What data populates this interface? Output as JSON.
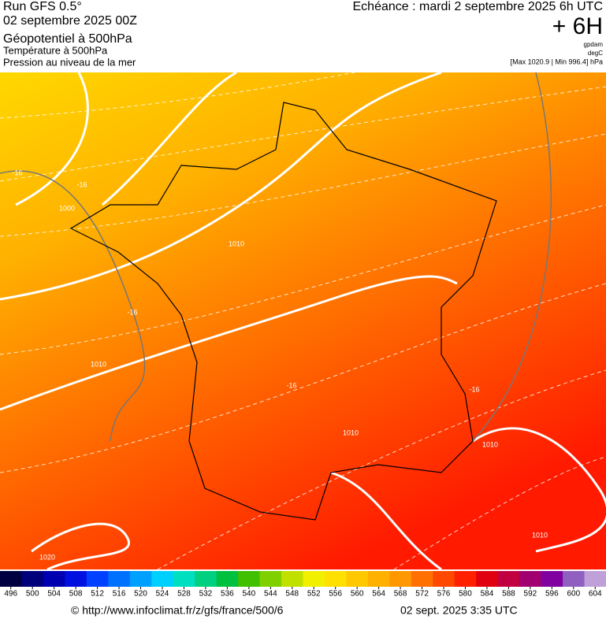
{
  "header": {
    "left": [
      "Run GFS 0.5°",
      "02 septembre 2025 00Z",
      "Géopotentiel à 500hPa",
      "Température à 500hPa",
      "Pression au niveau de la mer"
    ],
    "echeance": "Echéance : mardi 2 septembre 2025 6h UTC",
    "lead": "+ 6H",
    "units": [
      "gpdam",
      "degC"
    ],
    "range": "[Max 1020.9 | Min 996.4] hPa"
  },
  "map": {
    "labels": [
      "-16",
      "1000",
      "-16",
      "1010",
      "-16",
      "1010",
      "-16",
      "1010",
      "1010",
      "-16",
      "1020",
      "1010"
    ]
  },
  "legend": {
    "ticks": [
      496,
      500,
      504,
      508,
      512,
      516,
      520,
      524,
      528,
      532,
      536,
      540,
      544,
      548,
      552,
      556,
      560,
      564,
      568,
      572,
      576,
      580,
      584,
      588,
      592,
      596,
      600,
      604
    ],
    "colors": [
      "#000040",
      "#00007a",
      "#0000b0",
      "#0010e0",
      "#0040ff",
      "#0070ff",
      "#00a0ff",
      "#00d0ff",
      "#00e0c0",
      "#00d080",
      "#00c040",
      "#40c000",
      "#80d000",
      "#c0e000",
      "#f0f000",
      "#ffe000",
      "#ffc800",
      "#ffb000",
      "#ff9800",
      "#ff7000",
      "#ff4800",
      "#ff2000",
      "#e00010",
      "#c00040",
      "#a00070",
      "#8000a0",
      "#9060c0",
      "#c0a0d8"
    ]
  },
  "footer": {
    "source": "© http://www.infoclimat.fr/z/gfs/france/500/6",
    "date": "02 sept. 2025  3:35 UTC"
  }
}
